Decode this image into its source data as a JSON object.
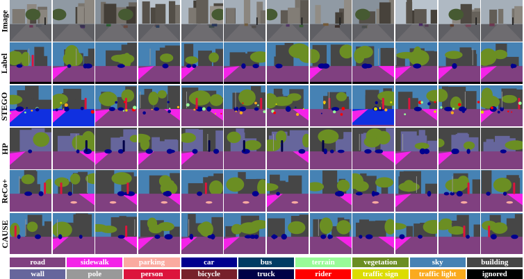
{
  "rows": [
    {
      "key": "image",
      "label": "Image"
    },
    {
      "key": "label",
      "label": "Label"
    },
    {
      "key": "stego",
      "label": "STEGO"
    },
    {
      "key": "hp",
      "label": "HP"
    },
    {
      "key": "reco",
      "label": "ReCo+"
    },
    {
      "key": "cause",
      "label": "CAUSE"
    }
  ],
  "num_samples": 12,
  "legend": [
    {
      "name": "road",
      "color": "#804080",
      "text": "#ffffff"
    },
    {
      "name": "sidewalk",
      "color": "#f423e8",
      "text": "#ffffff"
    },
    {
      "name": "parking",
      "color": "#faaaa0",
      "text": "#ffffff"
    },
    {
      "name": "car",
      "color": "#00008e",
      "text": "#ffffff"
    },
    {
      "name": "bus",
      "color": "#003c64",
      "text": "#ffffff"
    },
    {
      "name": "terrain",
      "color": "#98fb98",
      "text": "#ffffff"
    },
    {
      "name": "vegetation",
      "color": "#6b8e23",
      "text": "#ffffff"
    },
    {
      "name": "sky",
      "color": "#4682b4",
      "text": "#ffffff"
    },
    {
      "name": "building",
      "color": "#464646",
      "text": "#ffffff"
    },
    {
      "name": "wall",
      "color": "#66669c",
      "text": "#ffffff"
    },
    {
      "name": "pole",
      "color": "#999999",
      "text": "#ffffff"
    },
    {
      "name": "person",
      "color": "#dc143c",
      "text": "#ffffff"
    },
    {
      "name": "bicycle",
      "color": "#77202b",
      "text": "#ffffff"
    },
    {
      "name": "truck",
      "color": "#000046",
      "text": "#ffffff"
    },
    {
      "name": "rider",
      "color": "#ff0000",
      "text": "#ffffff"
    },
    {
      "name": "traffic sign",
      "color": "#dcdc00",
      "text": "#ffffff"
    },
    {
      "name": "traffic light",
      "color": "#faaa1e",
      "text": "#ffffff"
    },
    {
      "name": "ignored",
      "color": "#000000",
      "text": "#ffffff"
    }
  ]
}
